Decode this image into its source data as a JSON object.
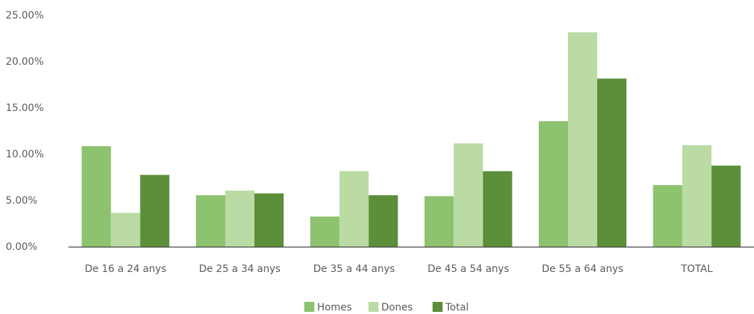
{
  "chart_data": {
    "type": "bar",
    "categories": [
      "De 16 a 24 anys",
      "De 25 a 34 anys",
      "De 35 a 44 anys",
      "De 45 a 54 anys",
      "De 55 a 64 anys",
      "TOTAL"
    ],
    "series": [
      {
        "name": "Homes",
        "color": "#8dc26f",
        "values": [
          10.9,
          5.6,
          3.3,
          5.5,
          13.6,
          6.7
        ]
      },
      {
        "name": "Dones",
        "color": "#badba4",
        "values": [
          3.7,
          6.1,
          8.2,
          11.2,
          23.2,
          11.0
        ]
      },
      {
        "name": "Total",
        "color": "#5b8f39",
        "values": [
          7.8,
          5.8,
          5.6,
          8.2,
          18.2,
          8.8
        ]
      }
    ],
    "ylim": [
      0,
      25
    ],
    "yticks": [
      {
        "value": 0,
        "label": "0.00%"
      },
      {
        "value": 5,
        "label": "5.00%"
      },
      {
        "value": 10,
        "label": "10.00%"
      },
      {
        "value": 15,
        "label": "15.00%"
      },
      {
        "value": 20,
        "label": "20.00%"
      },
      {
        "value": 25,
        "label": "25.00%"
      }
    ],
    "grid": false,
    "legend": "bottom"
  }
}
